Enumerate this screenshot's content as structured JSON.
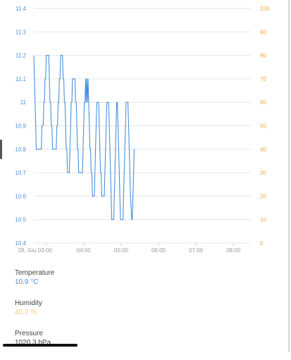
{
  "chart_data": {
    "type": "line",
    "title": "",
    "xlabel": "",
    "ylabel": "",
    "ylim": [
      10.4,
      11.4
    ],
    "y2lim": [
      0,
      100
    ],
    "yticks": [
      "10.4",
      "10.5",
      "10.6",
      "10.7",
      "10.8",
      "10.9",
      "11",
      "11.1",
      "11.2",
      "11.3",
      "11.4"
    ],
    "y2ticks": [
      "0",
      "10",
      "20",
      "30",
      "40",
      "50",
      "60",
      "70",
      "80",
      "90",
      "100"
    ],
    "xticks": [
      {
        "label": "28. Giu 03:00",
        "t": 0
      },
      {
        "label": "04:00",
        "t": 60
      },
      {
        "label": "05:00",
        "t": 120
      },
      {
        "label": "06:00",
        "t": 180
      },
      {
        "label": "07:00",
        "t": 240
      },
      {
        "label": "08:00",
        "t": 300
      }
    ],
    "xlim": [
      -20,
      328
    ],
    "grid": true,
    "series": [
      {
        "color": "#4a90d9",
        "axis": "left",
        "points": [
          [
            -20,
            11.2
          ],
          [
            -19,
            11.1
          ],
          [
            -18,
            11.0
          ],
          [
            -17,
            10.9
          ],
          [
            -16,
            10.8
          ],
          [
            -14,
            10.8
          ],
          [
            -10,
            10.8
          ],
          [
            -8,
            10.8
          ],
          [
            -7,
            10.9
          ],
          [
            -5,
            10.9
          ],
          [
            -4,
            11.0
          ],
          [
            -3,
            11.0
          ],
          [
            -2,
            11.1
          ],
          [
            -1,
            11.1
          ],
          [
            0,
            11.2
          ],
          [
            1,
            11.2
          ],
          [
            4,
            11.2
          ],
          [
            5,
            11.1
          ],
          [
            6,
            11.0
          ],
          [
            7,
            11.0
          ],
          [
            8,
            10.9
          ],
          [
            9,
            10.9
          ],
          [
            10,
            10.8
          ],
          [
            12,
            10.8
          ],
          [
            16,
            10.8
          ],
          [
            17,
            10.9
          ],
          [
            18,
            10.9
          ],
          [
            19,
            11.0
          ],
          [
            20,
            11.0
          ],
          [
            21,
            11.1
          ],
          [
            22,
            11.1
          ],
          [
            23,
            11.2
          ],
          [
            26,
            11.2
          ],
          [
            27,
            11.1
          ],
          [
            28,
            11.1
          ],
          [
            29,
            11.0
          ],
          [
            30,
            11.0
          ],
          [
            31,
            10.9
          ],
          [
            32,
            10.8
          ],
          [
            33,
            10.8
          ],
          [
            34,
            10.7
          ],
          [
            36,
            10.7
          ],
          [
            37,
            10.7
          ],
          [
            38,
            10.8
          ],
          [
            39,
            10.9
          ],
          [
            40,
            11.0
          ],
          [
            41,
            11.0
          ],
          [
            42,
            11.1
          ],
          [
            43,
            11.1
          ],
          [
            46,
            11.1
          ],
          [
            47,
            11.0
          ],
          [
            48,
            11.0
          ],
          [
            49,
            10.9
          ],
          [
            50,
            10.8
          ],
          [
            51,
            10.8
          ],
          [
            52,
            10.7
          ],
          [
            58,
            10.7
          ],
          [
            59,
            10.8
          ],
          [
            60,
            10.9
          ],
          [
            61,
            11.0
          ],
          [
            62,
            11.0
          ],
          [
            63,
            11.1
          ],
          [
            64,
            11.0
          ],
          [
            65,
            11.1
          ],
          [
            66,
            11.0
          ],
          [
            67,
            11.1
          ],
          [
            68,
            11.0
          ],
          [
            69,
            10.9
          ],
          [
            70,
            10.8
          ],
          [
            71,
            10.8
          ],
          [
            72,
            10.7
          ],
          [
            73,
            10.7
          ],
          [
            74,
            10.6
          ],
          [
            77,
            10.6
          ],
          [
            78,
            10.7
          ],
          [
            79,
            10.8
          ],
          [
            80,
            10.9
          ],
          [
            81,
            11.0
          ],
          [
            84,
            11.0
          ],
          [
            85,
            10.9
          ],
          [
            86,
            10.8
          ],
          [
            87,
            10.7
          ],
          [
            88,
            10.7
          ],
          [
            89,
            10.6
          ],
          [
            93,
            10.6
          ],
          [
            94,
            10.7
          ],
          [
            95,
            10.8
          ],
          [
            96,
            10.9
          ],
          [
            97,
            11.0
          ],
          [
            100,
            11.0
          ],
          [
            101,
            10.9
          ],
          [
            102,
            10.8
          ],
          [
            103,
            10.7
          ],
          [
            104,
            10.6
          ],
          [
            105,
            10.5
          ],
          [
            108,
            10.5
          ],
          [
            109,
            10.6
          ],
          [
            110,
            10.7
          ],
          [
            111,
            10.8
          ],
          [
            112,
            10.9
          ],
          [
            113,
            11.0
          ],
          [
            114,
            11.0
          ],
          [
            115,
            10.9
          ],
          [
            116,
            10.8
          ],
          [
            117,
            10.7
          ],
          [
            118,
            10.6
          ],
          [
            119,
            10.5
          ],
          [
            123,
            10.5
          ],
          [
            124,
            10.6
          ],
          [
            125,
            10.7
          ],
          [
            126,
            10.8
          ],
          [
            127,
            10.9
          ],
          [
            128,
            11.0
          ],
          [
            131,
            11.0
          ],
          [
            132,
            10.9
          ],
          [
            133,
            10.8
          ],
          [
            134,
            10.7
          ],
          [
            135,
            10.6
          ],
          [
            137,
            10.5
          ],
          [
            138,
            10.5
          ],
          [
            139,
            10.6
          ],
          [
            140,
            10.7
          ],
          [
            141,
            10.8
          ]
        ]
      }
    ]
  },
  "readings": {
    "temperature": {
      "label": "Temperature",
      "value": "10.9 °C"
    },
    "humidity": {
      "label": "Humidity",
      "value": "40.2 %"
    },
    "pressure": {
      "label": "Pressure",
      "value": "1020.3 hPa"
    }
  }
}
